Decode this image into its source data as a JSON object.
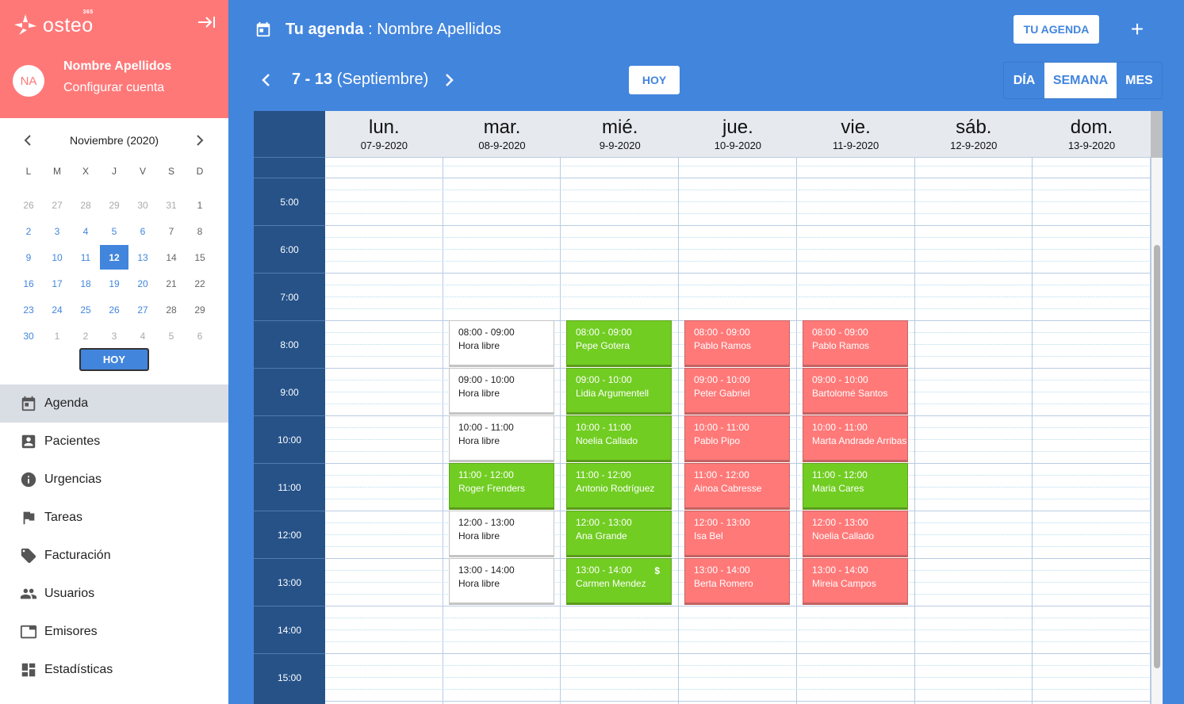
{
  "app": {
    "logo_text": "osteo",
    "logo_sup": "365"
  },
  "user": {
    "initials": "NA",
    "name": "Nombre Apellidos",
    "config_link": "Configurar cuenta"
  },
  "mini_calendar": {
    "title": "Noviembre (2020)",
    "prev_icon": "chevron-left-icon",
    "next_icon": "chevron-right-icon",
    "weekdays": [
      "L",
      "M",
      "X",
      "J",
      "V",
      "S",
      "D"
    ],
    "weeks": [
      [
        {
          "d": "26",
          "t": "other"
        },
        {
          "d": "27",
          "t": "other"
        },
        {
          "d": "28",
          "t": "other"
        },
        {
          "d": "29",
          "t": "other"
        },
        {
          "d": "30",
          "t": "other"
        },
        {
          "d": "31",
          "t": "other"
        },
        {
          "d": "1",
          "t": "weekend"
        }
      ],
      [
        {
          "d": "2",
          "t": "day"
        },
        {
          "d": "3",
          "t": "day"
        },
        {
          "d": "4",
          "t": "day"
        },
        {
          "d": "5",
          "t": "day"
        },
        {
          "d": "6",
          "t": "day"
        },
        {
          "d": "7",
          "t": "weekend"
        },
        {
          "d": "8",
          "t": "weekend"
        }
      ],
      [
        {
          "d": "9",
          "t": "day"
        },
        {
          "d": "10",
          "t": "day"
        },
        {
          "d": "11",
          "t": "day"
        },
        {
          "d": "12",
          "t": "selected"
        },
        {
          "d": "13",
          "t": "day"
        },
        {
          "d": "14",
          "t": "weekend"
        },
        {
          "d": "15",
          "t": "weekend"
        }
      ],
      [
        {
          "d": "16",
          "t": "day"
        },
        {
          "d": "17",
          "t": "day"
        },
        {
          "d": "18",
          "t": "day"
        },
        {
          "d": "19",
          "t": "day"
        },
        {
          "d": "20",
          "t": "day"
        },
        {
          "d": "21",
          "t": "weekend"
        },
        {
          "d": "22",
          "t": "weekend"
        }
      ],
      [
        {
          "d": "23",
          "t": "day"
        },
        {
          "d": "24",
          "t": "day"
        },
        {
          "d": "25",
          "t": "day"
        },
        {
          "d": "26",
          "t": "day"
        },
        {
          "d": "27",
          "t": "day"
        },
        {
          "d": "28",
          "t": "weekend"
        },
        {
          "d": "29",
          "t": "weekend"
        }
      ],
      [
        {
          "d": "30",
          "t": "day"
        },
        {
          "d": "1",
          "t": "other"
        },
        {
          "d": "2",
          "t": "other"
        },
        {
          "d": "3",
          "t": "other"
        },
        {
          "d": "4",
          "t": "other"
        },
        {
          "d": "5",
          "t": "other"
        },
        {
          "d": "6",
          "t": "other"
        }
      ]
    ],
    "today_button": "HOY"
  },
  "nav": {
    "items": [
      {
        "label": "Agenda",
        "icon": "calendar-icon",
        "active": true
      },
      {
        "label": "Pacientes",
        "icon": "patient-icon",
        "active": false
      },
      {
        "label": "Urgencias",
        "icon": "info-icon",
        "active": false
      },
      {
        "label": "Tareas",
        "icon": "flag-icon",
        "active": false
      },
      {
        "label": "Facturación",
        "icon": "tag-icon",
        "active": false
      },
      {
        "label": "Usuarios",
        "icon": "users-icon",
        "active": false
      },
      {
        "label": "Emisores",
        "icon": "window-icon",
        "active": false
      },
      {
        "label": "Estadísticas",
        "icon": "dashboard-icon",
        "active": false
      }
    ]
  },
  "header": {
    "title_bold": "Tu agenda",
    "title_rest": " : Nombre Apellidos",
    "my_agenda_button": "TU AGENDA",
    "add_button": "+",
    "week_range_bold": "7 - 13",
    "week_range_rest": " (Septiembre)",
    "today_button": "HOY",
    "views": [
      {
        "label": "DÍA",
        "active": false
      },
      {
        "label": "SEMANA",
        "active": true
      },
      {
        "label": "MES",
        "active": false
      }
    ]
  },
  "calendar": {
    "days": [
      {
        "name": "lun.",
        "date": "07-9-2020"
      },
      {
        "name": "mar.",
        "date": "08-9-2020"
      },
      {
        "name": "mié.",
        "date": "9-9-2020"
      },
      {
        "name": "jue.",
        "date": "10-9-2020"
      },
      {
        "name": "vie.",
        "date": "11-9-2020"
      },
      {
        "name": "sáb.",
        "date": "12-9-2020"
      },
      {
        "name": "dom.",
        "date": "13-9-2020"
      }
    ],
    "hours": [
      "5:00",
      "6:00",
      "7:00",
      "8:00",
      "9:00",
      "10:00",
      "11:00",
      "12:00",
      "13:00",
      "14:00",
      "15:00"
    ],
    "events": [
      {
        "day": 1,
        "start": 8,
        "time": "08:00 - 09:00",
        "name": "Hora libre",
        "status": "free"
      },
      {
        "day": 1,
        "start": 9,
        "time": "09:00 - 10:00",
        "name": "Hora libre",
        "status": "free"
      },
      {
        "day": 1,
        "start": 10,
        "time": "10:00 - 11:00",
        "name": "Hora libre",
        "status": "free"
      },
      {
        "day": 1,
        "start": 11,
        "time": "11:00 - 12:00",
        "name": "Roger Frenders",
        "status": "green"
      },
      {
        "day": 1,
        "start": 12,
        "time": "12:00 - 13:00",
        "name": "Hora libre",
        "status": "free"
      },
      {
        "day": 1,
        "start": 13,
        "time": "13:00 - 14:00",
        "name": "Hora libre",
        "status": "free"
      },
      {
        "day": 2,
        "start": 8,
        "time": "08:00 - 09:00",
        "name": "Pepe Gotera",
        "status": "green"
      },
      {
        "day": 2,
        "start": 9,
        "time": "09:00 - 10:00",
        "name": "Lidia Argumentell",
        "status": "green"
      },
      {
        "day": 2,
        "start": 10,
        "time": "10:00 - 11:00",
        "name": "Noelia Callado",
        "status": "green"
      },
      {
        "day": 2,
        "start": 11,
        "time": "11:00 - 12:00",
        "name": "Antonio Rodríguez",
        "status": "green"
      },
      {
        "day": 2,
        "start": 12,
        "time": "12:00 - 13:00",
        "name": "Ana Grande",
        "status": "green"
      },
      {
        "day": 2,
        "start": 13,
        "time": "13:00 - 14:00",
        "name": "Carmen Mendez",
        "status": "green",
        "badge": "$"
      },
      {
        "day": 3,
        "start": 8,
        "time": "08:00 - 09:00",
        "name": "Pablo Ramos",
        "status": "red"
      },
      {
        "day": 3,
        "start": 9,
        "time": "09:00 - 10:00",
        "name": "Peter Gabriel",
        "status": "red"
      },
      {
        "day": 3,
        "start": 10,
        "time": "10:00 - 11:00",
        "name": "Pablo Pipo",
        "status": "red"
      },
      {
        "day": 3,
        "start": 11,
        "time": "11:00 - 12:00",
        "name": "Ainoa Cabresse",
        "status": "red"
      },
      {
        "day": 3,
        "start": 12,
        "time": "12:00 - 13:00",
        "name": "Isa Bel",
        "status": "red"
      },
      {
        "day": 3,
        "start": 13,
        "time": "13:00 - 14:00",
        "name": "Berta Romero",
        "status": "red"
      },
      {
        "day": 4,
        "start": 8,
        "time": "08:00 - 09:00",
        "name": "Pablo Ramos",
        "status": "red"
      },
      {
        "day": 4,
        "start": 9,
        "time": "09:00 - 10:00",
        "name": "Bartolomé Santos",
        "status": "red"
      },
      {
        "day": 4,
        "start": 10,
        "time": "10:00 - 11:00",
        "name": "Marta Andrade Arribas",
        "status": "red"
      },
      {
        "day": 4,
        "start": 11,
        "time": "11:00 - 12:00",
        "name": "Maria Cares",
        "status": "green"
      },
      {
        "day": 4,
        "start": 12,
        "time": "12:00 - 13:00",
        "name": "Noelia Callado",
        "status": "red"
      },
      {
        "day": 4,
        "start": 13,
        "time": "13:00 - 14:00",
        "name": "Mireia Campos",
        "status": "red"
      }
    ]
  },
  "colors": {
    "brand_blue": "#4285dd",
    "sidebar_header": "#ff7878",
    "time_column": "#265288",
    "event_green": "#71cd22",
    "event_red": "#ff7979",
    "event_free": "#ffffff"
  }
}
